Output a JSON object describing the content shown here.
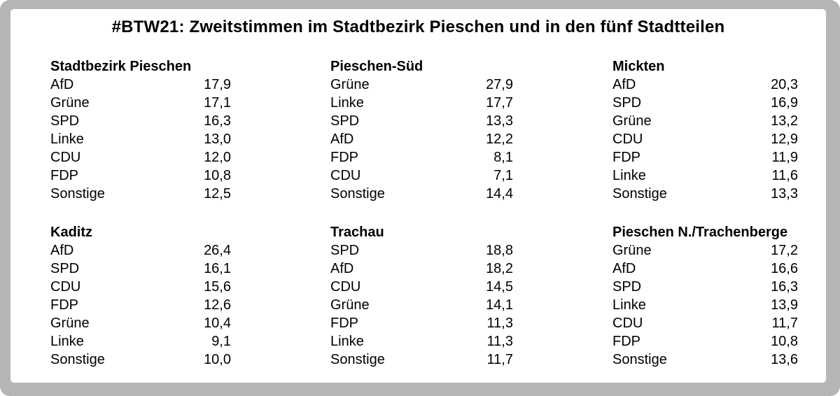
{
  "title": "#BTW21: Zweitstimmen im Stadtbezirk Pieschen und in den fünf Stadtteilen",
  "colors": {
    "frame_gray": "#b5b5b5",
    "card_background": "#ffffff",
    "text": "#000000"
  },
  "blocks": [
    {
      "name": "Stadtbezirk Pieschen",
      "rows": [
        {
          "party": "AfD",
          "value": "17,9"
        },
        {
          "party": "Grüne",
          "value": "17,1"
        },
        {
          "party": "SPD",
          "value": "16,3"
        },
        {
          "party": "Linke",
          "value": "13,0"
        },
        {
          "party": "CDU",
          "value": "12,0"
        },
        {
          "party": "FDP",
          "value": "10,8"
        },
        {
          "party": "Sonstige",
          "value": "12,5"
        }
      ]
    },
    {
      "name": "Pieschen-Süd",
      "rows": [
        {
          "party": "Grüne",
          "value": "27,9"
        },
        {
          "party": "Linke",
          "value": "17,7"
        },
        {
          "party": "SPD",
          "value": "13,3"
        },
        {
          "party": "AfD",
          "value": "12,2"
        },
        {
          "party": "FDP",
          "value": "8,1"
        },
        {
          "party": "CDU",
          "value": "7,1"
        },
        {
          "party": "Sonstige",
          "value": "14,4"
        }
      ]
    },
    {
      "name": "Mickten",
      "rows": [
        {
          "party": "AfD",
          "value": "20,3"
        },
        {
          "party": "SPD",
          "value": "16,9"
        },
        {
          "party": "Grüne",
          "value": "13,2"
        },
        {
          "party": "CDU",
          "value": "12,9"
        },
        {
          "party": "FDP",
          "value": "11,9"
        },
        {
          "party": "Linke",
          "value": "11,6"
        },
        {
          "party": "Sonstige",
          "value": "13,3"
        }
      ]
    },
    {
      "name": "Kaditz",
      "rows": [
        {
          "party": "AfD",
          "value": "26,4"
        },
        {
          "party": "SPD",
          "value": "16,1"
        },
        {
          "party": "CDU",
          "value": "15,6"
        },
        {
          "party": "FDP",
          "value": "12,6"
        },
        {
          "party": "Grüne",
          "value": "10,4"
        },
        {
          "party": "Linke",
          "value": "9,1"
        },
        {
          "party": "Sonstige",
          "value": "10,0"
        }
      ]
    },
    {
      "name": "Trachau",
      "rows": [
        {
          "party": "SPD",
          "value": "18,8"
        },
        {
          "party": "AfD",
          "value": "18,2"
        },
        {
          "party": "CDU",
          "value": "14,5"
        },
        {
          "party": "Grüne",
          "value": "14,1"
        },
        {
          "party": "FDP",
          "value": "11,3"
        },
        {
          "party": "Linke",
          "value": "11,3"
        },
        {
          "party": "Sonstige",
          "value": "11,7"
        }
      ]
    },
    {
      "name": "Pieschen N./Trachenberge",
      "rows": [
        {
          "party": "Grüne",
          "value": "17,2"
        },
        {
          "party": "AfD",
          "value": "16,6"
        },
        {
          "party": "SPD",
          "value": "16,3"
        },
        {
          "party": "Linke",
          "value": "13,9"
        },
        {
          "party": "CDU",
          "value": "11,7"
        },
        {
          "party": "FDP",
          "value": "10,8"
        },
        {
          "party": "Sonstige",
          "value": "13,6"
        }
      ]
    }
  ],
  "chart_data": {
    "type": "table",
    "title": "#BTW21: Zweitstimmen im Stadtbezirk Pieschen und in den fünf Stadtteilen",
    "unit": "percent",
    "tables": [
      {
        "name": "Stadtbezirk Pieschen",
        "categories": [
          "AfD",
          "Grüne",
          "SPD",
          "Linke",
          "CDU",
          "FDP",
          "Sonstige"
        ],
        "values": [
          17.9,
          17.1,
          16.3,
          13.0,
          12.0,
          10.8,
          12.5
        ]
      },
      {
        "name": "Pieschen-Süd",
        "categories": [
          "Grüne",
          "Linke",
          "SPD",
          "AfD",
          "FDP",
          "CDU",
          "Sonstige"
        ],
        "values": [
          27.9,
          17.7,
          13.3,
          12.2,
          8.1,
          7.1,
          14.4
        ]
      },
      {
        "name": "Mickten",
        "categories": [
          "AfD",
          "SPD",
          "Grüne",
          "CDU",
          "FDP",
          "Linke",
          "Sonstige"
        ],
        "values": [
          20.3,
          16.9,
          13.2,
          12.9,
          11.9,
          11.6,
          13.3
        ]
      },
      {
        "name": "Kaditz",
        "categories": [
          "AfD",
          "SPD",
          "CDU",
          "FDP",
          "Grüne",
          "Linke",
          "Sonstige"
        ],
        "values": [
          26.4,
          16.1,
          15.6,
          12.6,
          10.4,
          9.1,
          10.0
        ]
      },
      {
        "name": "Trachau",
        "categories": [
          "SPD",
          "AfD",
          "CDU",
          "Grüne",
          "FDP",
          "Linke",
          "Sonstige"
        ],
        "values": [
          18.8,
          18.2,
          14.5,
          14.1,
          11.3,
          11.3,
          11.7
        ]
      },
      {
        "name": "Pieschen N./Trachenberge",
        "categories": [
          "Grüne",
          "AfD",
          "SPD",
          "Linke",
          "CDU",
          "FDP",
          "Sonstige"
        ],
        "values": [
          17.2,
          16.6,
          16.3,
          13.9,
          11.7,
          10.8,
          13.6
        ]
      }
    ]
  }
}
